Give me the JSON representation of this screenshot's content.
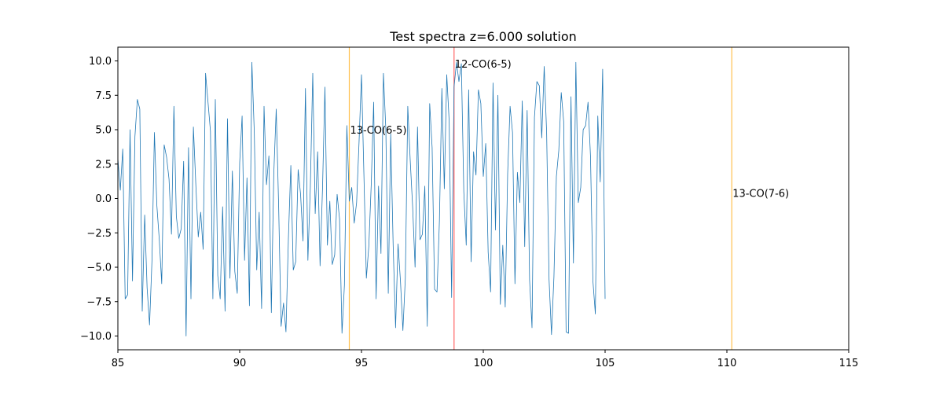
{
  "chart_data": {
    "type": "line",
    "title": "Test spectra z=6.000 solution",
    "xlabel": "",
    "ylabel": "",
    "xlim": [
      85,
      115
    ],
    "ylim": [
      -11,
      11
    ],
    "xticks": [
      85,
      90,
      95,
      100,
      105,
      110,
      115
    ],
    "yticks": [
      -10.0,
      -7.5,
      -5.0,
      -2.5,
      0.0,
      2.5,
      5.0,
      7.5,
      10.0
    ],
    "xtick_labels": [
      "85",
      "90",
      "95",
      "100",
      "105",
      "110",
      "115"
    ],
    "ytick_labels": [
      "−10.0",
      "−7.5",
      "−5.0",
      "−2.5",
      "0.0",
      "2.5",
      "5.0",
      "7.5",
      "10.0"
    ],
    "grid": false,
    "series_color": "#1f77b4",
    "x_start": 85,
    "x_step": 0.1,
    "values": [
      2.9,
      0.6,
      3.6,
      -7.3,
      -7.0,
      5.0,
      -6.0,
      4.5,
      7.2,
      6.5,
      -8.2,
      -1.2,
      -6.5,
      -9.2,
      -4.5,
      4.8,
      -0.5,
      -3.0,
      -6.2,
      3.9,
      3.0,
      1.4,
      -2.6,
      6.7,
      -1.3,
      -2.9,
      -2.2,
      2.7,
      -10.0,
      3.7,
      -7.3,
      5.2,
      1.0,
      -2.8,
      -1.0,
      -3.7,
      9.1,
      7.0,
      4.9,
      -7.3,
      7.2,
      -5.6,
      -7.3,
      -0.6,
      -8.2,
      5.8,
      -5.8,
      2.0,
      -5.3,
      -6.9,
      2.6,
      6.0,
      -4.5,
      1.5,
      -7.8,
      9.9,
      4.8,
      -5.2,
      -1.0,
      -8.0,
      6.7,
      1.0,
      3.1,
      -8.3,
      1.8,
      6.5,
      -0.6,
      -9.3,
      -7.6,
      -9.7,
      -2.9,
      2.4,
      -5.2,
      -4.6,
      2.1,
      0.3,
      -3.1,
      8.0,
      -4.5,
      0.8,
      9.1,
      -1.1,
      3.4,
      -4.9,
      0.7,
      8.1,
      -3.4,
      -0.2,
      -4.8,
      -4.1,
      0.3,
      -1.5,
      -9.8,
      -6.3,
      5.3,
      -0.2,
      0.8,
      -1.8,
      -0.3,
      4.1,
      9.0,
      1.7,
      -5.8,
      -3.5,
      1.0,
      7.0,
      -7.3,
      0.9,
      -4.0,
      9.1,
      5.0,
      -6.9,
      4.7,
      -3.4,
      -9.4,
      -3.3,
      -6.0,
      -9.6,
      -5.8,
      6.7,
      2.8,
      -0.6,
      -5.0,
      5.2,
      -3.0,
      -2.6,
      0.9,
      -9.3,
      6.9,
      3.7,
      -6.6,
      -6.8,
      -1.6,
      8.0,
      0.7,
      9.0,
      5.6,
      -7.2,
      8.1,
      9.9,
      8.5,
      9.8,
      0.5,
      -3.4,
      7.9,
      -4.6,
      3.4,
      1.7,
      7.9,
      6.9,
      1.6,
      4.0,
      -3.9,
      -6.8,
      8.4,
      -2.3,
      7.5,
      -7.7,
      -3.4,
      -7.9,
      1.8,
      6.7,
      4.8,
      -6.2,
      1.9,
      -0.3,
      7.1,
      -3.5,
      6.4,
      -5.9,
      -9.4,
      5.9,
      8.5,
      8.2,
      4.4,
      9.6,
      4.8,
      -5.9,
      -9.9,
      -5.7,
      1.6,
      3.5,
      7.7,
      5.6,
      -9.7,
      -9.8,
      7.4,
      -4.7,
      9.9,
      -0.3,
      0.8,
      5.0,
      5.3,
      7.0,
      3.1,
      -6.0,
      -8.4,
      6.0,
      1.2,
      9.4,
      -7.3
    ],
    "vlines": [
      {
        "x": 94.5,
        "color": "#ffc04d",
        "label": "13-CO(6-5)",
        "label_y": 5.0
      },
      {
        "x": 98.8,
        "color": "#ff6666",
        "label": "12-CO(6-5)",
        "label_y": 9.8
      },
      {
        "x": 110.2,
        "color": "#ffc04d",
        "label": "13-CO(7-6)",
        "label_y": 0.4
      }
    ]
  }
}
